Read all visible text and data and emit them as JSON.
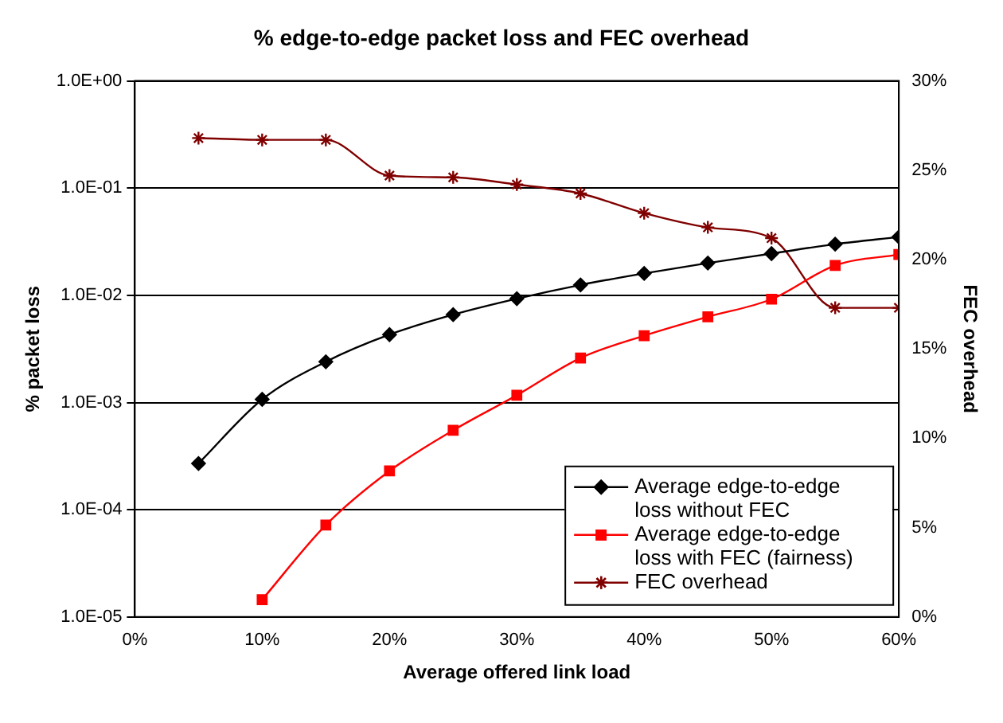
{
  "chart_data": {
    "type": "line",
    "title": "% edge-to-edge packet loss and FEC overhead",
    "xlabel": "Average offered link load",
    "ylabel": "% packet loss",
    "y2label": "FEC overhead",
    "x": [
      5,
      10,
      15,
      20,
      25,
      30,
      35,
      40,
      45,
      50,
      55,
      60
    ],
    "xlim": [
      0,
      60
    ],
    "xticks": [
      {
        "value": 0,
        "label": "0%"
      },
      {
        "value": 10,
        "label": "10%"
      },
      {
        "value": 20,
        "label": "20%"
      },
      {
        "value": 30,
        "label": "30%"
      },
      {
        "value": 40,
        "label": "40%"
      },
      {
        "value": 50,
        "label": "50%"
      },
      {
        "value": 60,
        "label": "60%"
      }
    ],
    "ylim": [
      1e-05,
      1
    ],
    "yticks": [
      {
        "value": 1e-05,
        "label": "1.0E-05"
      },
      {
        "value": 0.0001,
        "label": "1.0E-04"
      },
      {
        "value": 0.001,
        "label": "1.0E-03"
      },
      {
        "value": 0.01,
        "label": "1.0E-02"
      },
      {
        "value": 0.1,
        "label": "1.0E-01"
      },
      {
        "value": 1,
        "label": "1.0E+00"
      }
    ],
    "y2lim": [
      0,
      30
    ],
    "y2ticks": [
      {
        "value": 0,
        "label": "0%"
      },
      {
        "value": 5,
        "label": "5%"
      },
      {
        "value": 10,
        "label": "10%"
      },
      {
        "value": 15,
        "label": "15%"
      },
      {
        "value": 20,
        "label": "20%"
      },
      {
        "value": 25,
        "label": "25%"
      },
      {
        "value": 30,
        "label": "30%"
      }
    ],
    "log": "y",
    "grid": "y",
    "legend": "bottom right",
    "series": [
      {
        "name": "Average edge-to-edge loss without FEC",
        "color": "#000000",
        "marker": "diamond",
        "values": [
          0.00027,
          0.00107,
          0.0024,
          0.0043,
          0.0066,
          0.0093,
          0.0125,
          0.016,
          0.02,
          0.0245,
          0.03,
          0.035
        ]
      },
      {
        "name": "Average edge-to-edge loss with FEC (fairness)",
        "color": "#ff0000",
        "marker": "square",
        "values": [
          null,
          1.45e-05,
          7.2e-05,
          0.00023,
          0.00055,
          0.00117,
          0.0026,
          0.0042,
          0.0063,
          0.0092,
          0.019,
          0.024
        ]
      },
      {
        "name": "FEC overhead",
        "color": "#800000",
        "marker": "cross",
        "axis": "y2",
        "values": [
          26.8,
          26.7,
          26.7,
          24.7,
          24.6,
          24.2,
          23.7,
          22.6,
          21.8,
          21.2,
          17.3,
          17.3
        ]
      }
    ]
  }
}
